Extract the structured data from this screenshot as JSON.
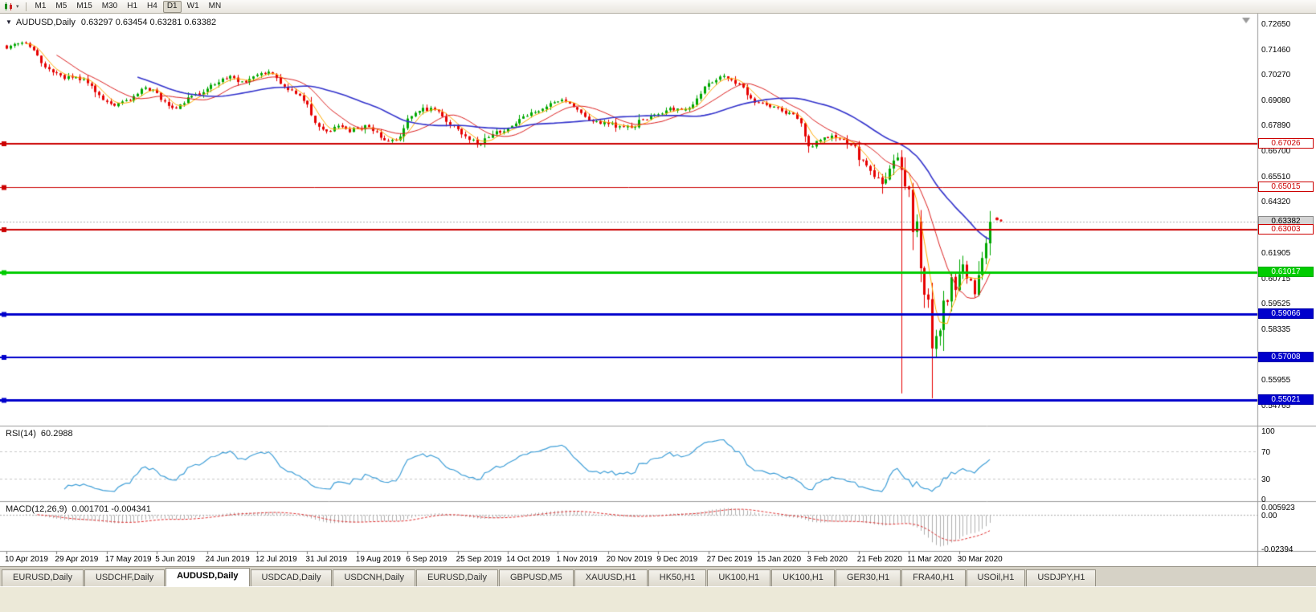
{
  "icons": {
    "chart_collapse": "▼",
    "toolbar_caret": "▾"
  },
  "toolbar": {
    "timeframes": [
      "M1",
      "M5",
      "M15",
      "M30",
      "H1",
      "H4",
      "D1",
      "W1",
      "MN"
    ],
    "active_timeframe": "D1"
  },
  "chart": {
    "symbol_label": "AUDUSD,Daily",
    "ohlc_text": "0.63297 0.63454 0.63281 0.63382"
  },
  "price_axis": {
    "labels": [
      {
        "text": "0.72650",
        "value": 0.7265
      },
      {
        "text": "0.71460",
        "value": 0.7146
      },
      {
        "text": "0.70270",
        "value": 0.7027
      },
      {
        "text": "0.69080",
        "value": 0.6908
      },
      {
        "text": "0.67890",
        "value": 0.6789
      },
      {
        "text": "0.66700",
        "value": 0.667
      },
      {
        "text": "0.65510",
        "value": 0.6551
      },
      {
        "text": "0.64320",
        "value": 0.6432
      },
      {
        "text": "0.61905",
        "value": 0.61905
      },
      {
        "text": "0.60715",
        "value": 0.60715
      },
      {
        "text": "0.59525",
        "value": 0.59525
      },
      {
        "text": "0.58335",
        "value": 0.58335
      },
      {
        "text": "0.57145",
        "value": 0.57145
      },
      {
        "text": "0.55955",
        "value": 0.55955
      },
      {
        "text": "0.54765",
        "value": 0.54765
      }
    ],
    "tags": [
      {
        "text": "0.67026",
        "value": 0.67026,
        "bg": "#ffffff",
        "fg": "#cc0000",
        "border": "#cc0000"
      },
      {
        "text": "0.65015",
        "value": 0.65015,
        "bg": "#ffffff",
        "fg": "#cc0000",
        "border": "#cc0000"
      },
      {
        "text": "0.63382",
        "value": 0.63382,
        "bg": "#d4d4d4",
        "fg": "#000000",
        "border": "#8a8a8a"
      },
      {
        "text": "0.63003",
        "value": 0.63003,
        "bg": "#ffffff",
        "fg": "#cc0000",
        "border": "#cc0000"
      },
      {
        "text": "0.61017",
        "value": 0.61017,
        "bg": "#00cc00",
        "fg": "#ffffff",
        "border": "#00aa00"
      },
      {
        "text": "0.59066",
        "value": 0.59066,
        "bg": "#0000cc",
        "fg": "#ffffff",
        "border": "#0000aa"
      },
      {
        "text": "0.57008",
        "value": 0.57008,
        "bg": "#0000cc",
        "fg": "#ffffff",
        "border": "#0000aa"
      },
      {
        "text": "0.55021",
        "value": 0.55021,
        "bg": "#0000cc",
        "fg": "#ffffff",
        "border": "#0000aa"
      }
    ]
  },
  "rsi": {
    "label": "RSI(14)",
    "value": "60.2988",
    "line_color": "#3f9fd8",
    "levels": [
      {
        "text": "100",
        "value": 100
      },
      {
        "text": "70",
        "value": 70
      },
      {
        "text": "30",
        "value": 30
      },
      {
        "text": "0",
        "value": 0
      }
    ]
  },
  "macd": {
    "label": "MACD(12,26,9)",
    "values": "0.001701 -0.004341",
    "histogram_color": "#b0b0b0",
    "signal_color": "#e03030",
    "axis": [
      {
        "text": "0.005923",
        "value": 0.005923
      },
      {
        "text": "0.00",
        "value": 0
      },
      {
        "text": "-0.02394",
        "value": -0.02394
      }
    ]
  },
  "date_axis": {
    "candles_per_label": 13,
    "labels": [
      "10 Apr 2019",
      "29 Apr 2019",
      "17 May 2019",
      "5 Jun 2019",
      "24 Jun 2019",
      "12 Jul 2019",
      "31 Jul 2019",
      "19 Aug 2019",
      "6 Sep 2019",
      "25 Sep 2019",
      "14 Oct 2019",
      "1 Nov 2019",
      "20 Nov 2019",
      "9 Dec 2019",
      "27 Dec 2019",
      "15 Jan 2020",
      "3 Feb 2020",
      "21 Feb 2020",
      "11 Mar 2020",
      "30 Mar 2020"
    ]
  },
  "tabs": {
    "active_index": 2,
    "items": [
      "EURUSD,Daily",
      "USDCHF,Daily",
      "AUDUSD,Daily",
      "USDCAD,Daily",
      "USDCNH,Daily",
      "EURUSD,Daily",
      "GBPUSD,M5",
      "XAUUSD,H1",
      "HK50,H1",
      "UK100,H1",
      "UK100,H1",
      "GER30,H1",
      "FRA40,H1",
      "USOil,H1",
      "USDJPY,H1"
    ],
    "active_item": "AUDUSD,Daily"
  },
  "chart_data": {
    "type": "candlestick",
    "title": "AUDUSD,Daily",
    "ohlc_display": {
      "open": 0.63297,
      "high": 0.63454,
      "low": 0.63281,
      "close": 0.63382
    },
    "current_price": 0.63382,
    "price_axis_range": {
      "top": 0.7265,
      "bottom": 0.54765
    },
    "x_labels": [
      "10 Apr 2019",
      "29 Apr 2019",
      "17 May 2019",
      "5 Jun 2019",
      "24 Jun 2019",
      "12 Jul 2019",
      "31 Jul 2019",
      "19 Aug 2019",
      "6 Sep 2019",
      "25 Sep 2019",
      "14 Oct 2019",
      "1 Nov 2019",
      "20 Nov 2019",
      "9 Dec 2019",
      "27 Dec 2019",
      "15 Jan 2020",
      "3 Feb 2020",
      "21 Feb 2020",
      "11 Mar 2020",
      "30 Mar 2020"
    ],
    "candles_count": 256,
    "up_color": "#00a800",
    "down_color": "#e60000",
    "close_anchors": [
      [
        0,
        0.715
      ],
      [
        2,
        0.7172
      ],
      [
        4,
        0.7178
      ],
      [
        6,
        0.7158
      ],
      [
        8,
        0.7118
      ],
      [
        10,
        0.7062
      ],
      [
        13,
        0.7035
      ],
      [
        15,
        0.7008
      ],
      [
        18,
        0.7018
      ],
      [
        21,
        0.6988
      ],
      [
        24,
        0.6932
      ],
      [
        26,
        0.69
      ],
      [
        28,
        0.6882
      ],
      [
        31,
        0.6908
      ],
      [
        34,
        0.6938
      ],
      [
        36,
        0.6968
      ],
      [
        38,
        0.6958
      ],
      [
        41,
        0.6902
      ],
      [
        43,
        0.6872
      ],
      [
        45,
        0.6888
      ],
      [
        48,
        0.6928
      ],
      [
        52,
        0.6962
      ],
      [
        55,
        0.6992
      ],
      [
        58,
        0.7022
      ],
      [
        61,
        0.6996
      ],
      [
        63,
        0.7008
      ],
      [
        65,
        0.7028
      ],
      [
        68,
        0.7042
      ],
      [
        70,
        0.7012
      ],
      [
        72,
        0.6972
      ],
      [
        75,
        0.6938
      ],
      [
        78,
        0.6888
      ],
      [
        80,
        0.6802
      ],
      [
        83,
        0.6762
      ],
      [
        86,
        0.6788
      ],
      [
        89,
        0.6758
      ],
      [
        91,
        0.6778
      ],
      [
        94,
        0.6782
      ],
      [
        97,
        0.6732
      ],
      [
        100,
        0.6722
      ],
      [
        102,
        0.6738
      ],
      [
        104,
        0.6822
      ],
      [
        107,
        0.6858
      ],
      [
        110,
        0.6872
      ],
      [
        113,
        0.6832
      ],
      [
        115,
        0.6792
      ],
      [
        117,
        0.6772
      ],
      [
        120,
        0.6722
      ],
      [
        123,
        0.6702
      ],
      [
        126,
        0.6748
      ],
      [
        129,
        0.6762
      ],
      [
        131,
        0.6788
      ],
      [
        134,
        0.6832
      ],
      [
        137,
        0.6852
      ],
      [
        140,
        0.6878
      ],
      [
        143,
        0.6902
      ],
      [
        146,
        0.6892
      ],
      [
        149,
        0.6848
      ],
      [
        152,
        0.6808
      ],
      [
        156,
        0.6796
      ],
      [
        159,
        0.6786
      ],
      [
        162,
        0.6778
      ],
      [
        165,
        0.6818
      ],
      [
        169,
        0.6842
      ],
      [
        172,
        0.6872
      ],
      [
        175,
        0.6862
      ],
      [
        178,
        0.6888
      ],
      [
        180,
        0.6938
      ],
      [
        182,
        0.6988
      ],
      [
        184,
        0.7002
      ],
      [
        186,
        0.7022
      ],
      [
        188,
        0.7002
      ],
      [
        190,
        0.6986
      ],
      [
        192,
        0.6932
      ],
      [
        195,
        0.6896
      ],
      [
        198,
        0.6876
      ],
      [
        201,
        0.6856
      ],
      [
        204,
        0.6842
      ],
      [
        206,
        0.68
      ],
      [
        208,
        0.6692
      ],
      [
        211,
        0.6722
      ],
      [
        214,
        0.6742
      ],
      [
        217,
        0.6722
      ],
      [
        220,
        0.6692
      ],
      [
        221,
        0.6628
      ],
      [
        223,
        0.6602
      ],
      [
        225,
        0.6548
      ],
      [
        227,
        0.6515
      ],
      [
        228,
        0.6537
      ],
      [
        229,
        0.6587
      ],
      [
        230,
        0.6625
      ],
      [
        231,
        0.6639
      ],
      [
        232,
        0.6581
      ],
      [
        233,
        0.6504
      ],
      [
        234,
        0.649
      ],
      [
        235,
        0.629
      ],
      [
        236,
        0.634
      ],
      [
        237,
        0.612
      ],
      [
        238,
        0.5996
      ],
      [
        239,
        0.5973
      ],
      [
        240,
        0.5744
      ],
      [
        241,
        0.5802
      ],
      [
        242,
        0.5828
      ],
      [
        243,
        0.5968
      ],
      [
        244,
        0.5962
      ],
      [
        245,
        0.6078
      ],
      [
        246,
        0.6018
      ],
      [
        247,
        0.6092
      ],
      [
        248,
        0.6138
      ],
      [
        249,
        0.6072
      ],
      [
        250,
        0.6062
      ],
      [
        251,
        0.5998
      ],
      [
        252,
        0.6088
      ],
      [
        253,
        0.6168
      ],
      [
        254,
        0.6238
      ],
      [
        255,
        0.6338
      ]
    ],
    "special_wicks": {
      "232": {
        "high": 0.6674,
        "low": 0.5533
      },
      "240": {
        "low": 0.551
      }
    },
    "moving_averages": [
      {
        "period": 5,
        "color": "#ffaa00",
        "width": 1
      },
      {
        "period": 13,
        "color": "#dd2222",
        "width": 1
      },
      {
        "period": 34,
        "color": "#3333cc",
        "width": 1.6
      }
    ],
    "horizontal_lines": [
      {
        "price": 0.67026,
        "color": "#cc0000",
        "width": 2
      },
      {
        "price": 0.65015,
        "color": "#cc0000",
        "width": 1
      },
      {
        "price": 0.63003,
        "color": "#cc0000",
        "width": 2
      },
      {
        "price": 0.61017,
        "color": "#00cc00",
        "width": 3
      },
      {
        "price": 0.59066,
        "color": "#0000cc",
        "width": 3
      },
      {
        "price": 0.57008,
        "color": "#0000cc",
        "width": 2
      },
      {
        "price": 0.55021,
        "color": "#0000cc",
        "width": 3
      }
    ],
    "last_price_dot": {
      "price": 0.6352,
      "color": "#e60000"
    },
    "indicators": [
      {
        "name": "RSI",
        "params": [
          14
        ],
        "current": 60.2988,
        "levels": [
          100,
          70,
          30,
          0
        ]
      },
      {
        "name": "MACD",
        "params": [
          12,
          26,
          9
        ],
        "current": [
          0.001701,
          -0.004341
        ],
        "axis_range": [
          0.005923,
          -0.02394
        ]
      }
    ]
  }
}
